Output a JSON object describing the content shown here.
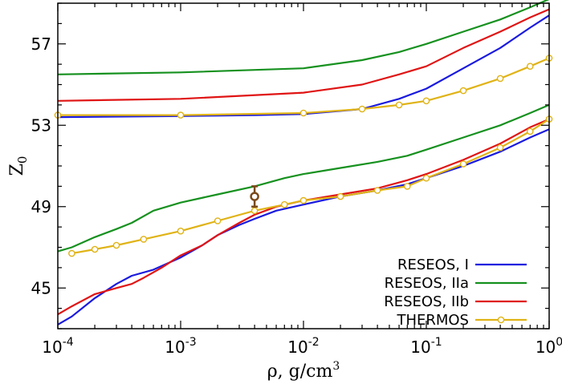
{
  "chart_data": {
    "type": "line",
    "xscale": "log",
    "xlim": [
      0.0001,
      1
    ],
    "ylim": [
      43.0,
      59.0
    ],
    "xticks": [
      {
        "v": 0.0001,
        "base": "10",
        "exp": "-4"
      },
      {
        "v": 0.001,
        "base": "10",
        "exp": "-3"
      },
      {
        "v": 0.01,
        "base": "10",
        "exp": "-2"
      },
      {
        "v": 0.1,
        "base": "10",
        "exp": "-1"
      },
      {
        "v": 1,
        "base": "10",
        "exp": "0"
      }
    ],
    "yticks": [
      {
        "v": 45,
        "label": "45"
      },
      {
        "v": 49,
        "label": "49"
      },
      {
        "v": 53,
        "label": "53"
      },
      {
        "v": 57,
        "label": "57"
      }
    ],
    "xlabel": {
      "main": "ρ, g/cm",
      "sup": "3"
    },
    "ylabel": {
      "main": "Z",
      "sub": "0"
    },
    "legend_position": "bottom-right",
    "grid": false,
    "series": [
      {
        "name": "RESEOS, I",
        "color": "#1a1adf",
        "marker": "none",
        "branches": [
          [
            [
              0.0001,
              53.4
            ],
            [
              0.001,
              53.45
            ],
            [
              0.004,
              53.5
            ],
            [
              0.01,
              53.55
            ],
            [
              0.03,
              53.8
            ],
            [
              0.06,
              54.3
            ],
            [
              0.1,
              54.8
            ],
            [
              0.2,
              55.8
            ],
            [
              0.4,
              56.8
            ],
            [
              0.7,
              57.8
            ],
            [
              1,
              58.4
            ]
          ],
          [
            [
              0.0001,
              43.2
            ],
            [
              0.00013,
              43.6
            ],
            [
              0.0002,
              44.5
            ],
            [
              0.0003,
              45.2
            ],
            [
              0.0004,
              45.6
            ],
            [
              0.0006,
              45.9
            ],
            [
              0.001,
              46.5
            ],
            [
              0.0015,
              47.1
            ],
            [
              0.002,
              47.6
            ],
            [
              0.003,
              48.1
            ],
            [
              0.004,
              48.4
            ],
            [
              0.006,
              48.8
            ],
            [
              0.01,
              49.1
            ],
            [
              0.02,
              49.5
            ],
            [
              0.04,
              49.8
            ],
            [
              0.07,
              50.1
            ],
            [
              0.1,
              50.4
            ],
            [
              0.2,
              51.0
            ],
            [
              0.4,
              51.7
            ],
            [
              0.7,
              52.4
            ],
            [
              1,
              52.8
            ]
          ]
        ]
      },
      {
        "name": "RESEOS, IIa",
        "color": "#16911f",
        "marker": "none",
        "branches": [
          [
            [
              0.0001,
              55.5
            ],
            [
              0.001,
              55.6
            ],
            [
              0.01,
              55.8
            ],
            [
              0.03,
              56.2
            ],
            [
              0.06,
              56.6
            ],
            [
              0.1,
              57.0
            ],
            [
              0.2,
              57.6
            ],
            [
              0.4,
              58.2
            ],
            [
              0.7,
              58.8
            ],
            [
              1,
              59.2
            ]
          ],
          [
            [
              0.0001,
              46.8
            ],
            [
              0.00013,
              47.0
            ],
            [
              0.0002,
              47.5
            ],
            [
              0.0003,
              47.9
            ],
            [
              0.0004,
              48.2
            ],
            [
              0.0006,
              48.8
            ],
            [
              0.001,
              49.2
            ],
            [
              0.002,
              49.6
            ],
            [
              0.004,
              50.0
            ],
            [
              0.007,
              50.4
            ],
            [
              0.01,
              50.6
            ],
            [
              0.02,
              50.9
            ],
            [
              0.04,
              51.2
            ],
            [
              0.07,
              51.5
            ],
            [
              0.1,
              51.8
            ],
            [
              0.2,
              52.4
            ],
            [
              0.4,
              53.0
            ],
            [
              0.7,
              53.6
            ],
            [
              1,
              54.0
            ]
          ]
        ]
      },
      {
        "name": "RESEOS, IIb",
        "color": "#e01414",
        "marker": "none",
        "branches": [
          [
            [
              0.0001,
              54.2
            ],
            [
              0.001,
              54.3
            ],
            [
              0.01,
              54.6
            ],
            [
              0.03,
              55.0
            ],
            [
              0.06,
              55.5
            ],
            [
              0.1,
              55.9
            ],
            [
              0.2,
              56.8
            ],
            [
              0.4,
              57.6
            ],
            [
              0.7,
              58.3
            ],
            [
              1,
              58.7
            ]
          ],
          [
            [
              0.0001,
              43.7
            ],
            [
              0.00013,
              44.1
            ],
            [
              0.0002,
              44.7
            ],
            [
              0.0003,
              45.0
            ],
            [
              0.0004,
              45.2
            ],
            [
              0.0005,
              45.5
            ],
            [
              0.0007,
              46.0
            ],
            [
              0.001,
              46.6
            ],
            [
              0.0015,
              47.1
            ],
            [
              0.002,
              47.6
            ],
            [
              0.003,
              48.2
            ],
            [
              0.004,
              48.6
            ],
            [
              0.006,
              49.0
            ],
            [
              0.01,
              49.3
            ],
            [
              0.02,
              49.6
            ],
            [
              0.04,
              49.9
            ],
            [
              0.07,
              50.3
            ],
            [
              0.1,
              50.6
            ],
            [
              0.2,
              51.3
            ],
            [
              0.4,
              52.1
            ],
            [
              0.7,
              52.9
            ],
            [
              1,
              53.3
            ]
          ]
        ]
      },
      {
        "name": "THERMOS",
        "color": "#e0b316",
        "marker": "circle",
        "branches": [
          [
            [
              0.0001,
              53.5
            ],
            [
              0.001,
              53.5
            ],
            [
              0.01,
              53.6
            ],
            [
              0.03,
              53.8
            ],
            [
              0.06,
              54.0
            ],
            [
              0.1,
              54.2
            ],
            [
              0.2,
              54.7
            ],
            [
              0.4,
              55.3
            ],
            [
              0.7,
              55.9
            ],
            [
              1,
              56.3
            ]
          ],
          [
            [
              0.00013,
              46.7
            ],
            [
              0.0002,
              46.9
            ],
            [
              0.0003,
              47.1
            ],
            [
              0.0005,
              47.4
            ],
            [
              0.001,
              47.8
            ],
            [
              0.002,
              48.3
            ],
            [
              0.004,
              48.8
            ],
            [
              0.007,
              49.1
            ],
            [
              0.01,
              49.3
            ],
            [
              0.02,
              49.5
            ],
            [
              0.04,
              49.8
            ],
            [
              0.07,
              50.0
            ],
            [
              0.1,
              50.4
            ],
            [
              0.2,
              51.1
            ],
            [
              0.4,
              51.9
            ],
            [
              0.7,
              52.7
            ],
            [
              1,
              53.3
            ]
          ]
        ]
      }
    ],
    "error_point": {
      "x": 0.004,
      "y": 49.5,
      "yerr": 0.5,
      "color": "#7a4a1a"
    }
  }
}
